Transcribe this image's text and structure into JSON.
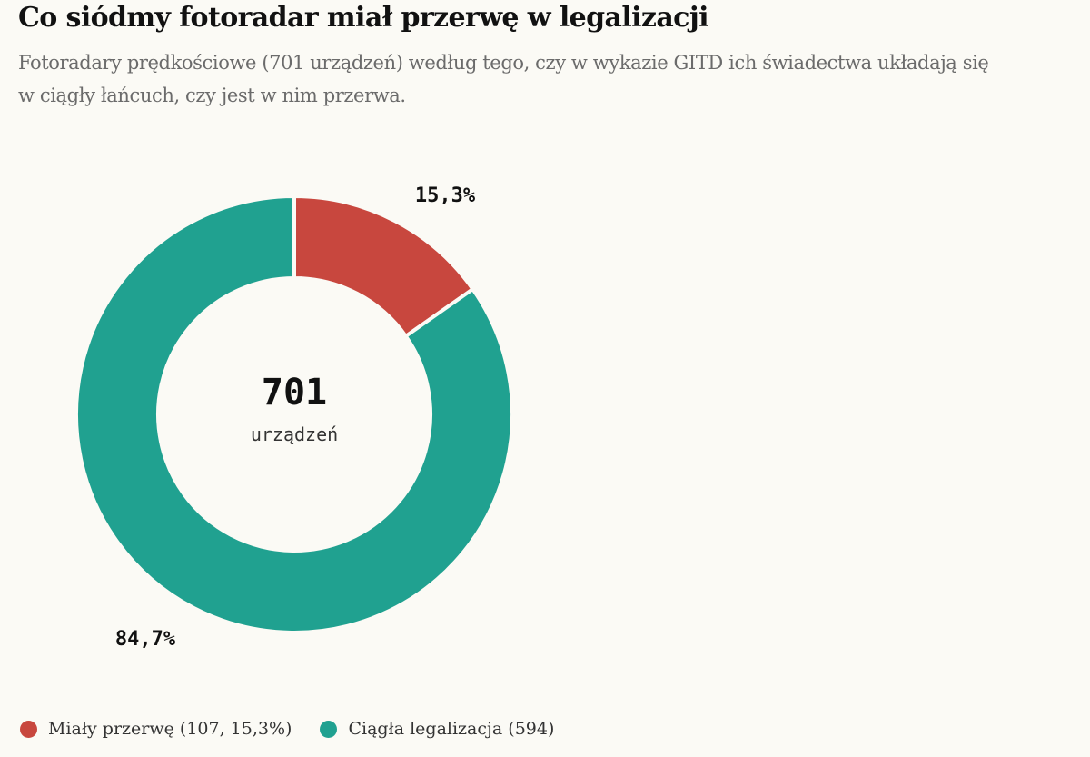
{
  "header": {
    "title": "Co siódmy fotoradar miał przerwę w legalizacji",
    "subtitle": "Fotoradary prędkościowe (701 urządzeń) według tego, czy w wykazie GITD ich świadectwa układają się w ciągły łańcuch, czy jest w nim przerwa."
  },
  "chart_data": {
    "type": "pie",
    "variant": "donut",
    "total": 701,
    "center_value": "701",
    "center_unit": "urządzeń",
    "slices": [
      {
        "legend_label": "Miały przerwę (107, 15,3%)",
        "value": 107,
        "percent_label": "15,3%",
        "color": "#c8473e"
      },
      {
        "legend_label": "Ciągła legalizacja (594)",
        "value": 594,
        "percent_label": "84,7%",
        "color": "#20a190"
      }
    ],
    "legend_placement": "bottom-left"
  }
}
